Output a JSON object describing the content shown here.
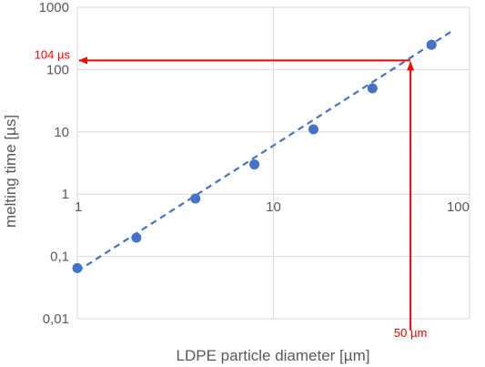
{
  "chart_data": {
    "type": "scatter",
    "title": "",
    "xlabel": "LDPE particle diameter [µm]",
    "ylabel": "melting time [µs]",
    "x_scale": "log",
    "y_scale": "log",
    "xlim": [
      1,
      100
    ],
    "ylim": [
      0.01,
      1000
    ],
    "x_ticks": [
      "1",
      "10",
      "100"
    ],
    "y_ticks": [
      "0,01",
      "0,1",
      "1",
      "10",
      "100",
      "1000"
    ],
    "grid": true,
    "legend": "none",
    "series": [
      {
        "marker_color": "#4472c4",
        "points": [
          {
            "x": 1,
            "y": 0.065
          },
          {
            "x": 2,
            "y": 0.2
          },
          {
            "x": 4,
            "y": 0.85
          },
          {
            "x": 8,
            "y": 3
          },
          {
            "x": 16,
            "y": 11
          },
          {
            "x": 32,
            "y": 50
          },
          {
            "x": 64,
            "y": 250
          }
        ]
      }
    ],
    "trendline": {
      "style": "dashed",
      "color": "#4472c4",
      "from": {
        "x": 1,
        "y": 0.058
      },
      "to": {
        "x": 80,
        "y": 400
      }
    },
    "annotations": [
      {
        "label": "104 µs",
        "x": 50,
        "y": 140,
        "color": "#ff0000",
        "arrow": "to-y-axis"
      },
      {
        "label": "50 µm",
        "x": 50,
        "y": 140,
        "color": "#ff0000",
        "arrow": "from-x-axis"
      }
    ]
  }
}
